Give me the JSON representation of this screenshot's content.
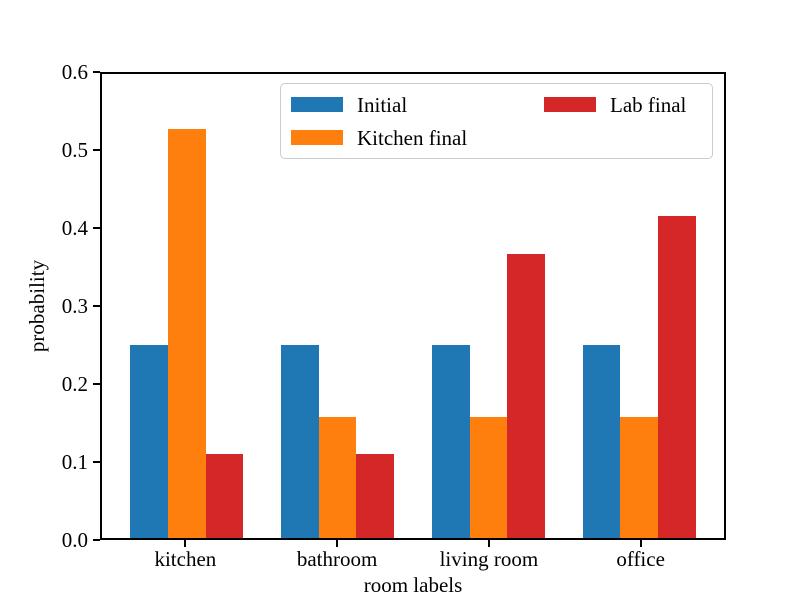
{
  "figure": {
    "background": "#ffffff",
    "spine_color": "#000000",
    "legend_border_color": "#cccccc"
  },
  "chart_data": {
    "type": "bar",
    "title": "",
    "xlabel": "room labels",
    "ylabel": "probability",
    "categories": [
      "kitchen",
      "bathroom",
      "living room",
      "office"
    ],
    "series": [
      {
        "name": "Initial",
        "color": "#1f77b4",
        "values": [
          0.25,
          0.25,
          0.25,
          0.25
        ]
      },
      {
        "name": "Kitchen final",
        "color": "#ff7f0e",
        "values": [
          0.529,
          0.157,
          0.157,
          0.157
        ]
      },
      {
        "name": "Lab final",
        "color": "#d62728",
        "values": [
          0.108,
          0.108,
          0.367,
          0.416
        ]
      }
    ],
    "ylim": [
      0,
      0.6
    ],
    "yticks": [
      "0.0",
      "0.1",
      "0.2",
      "0.3",
      "0.4",
      "0.5",
      "0.6"
    ],
    "grid": false,
    "legend_position": "upper center",
    "legend_columns": 2
  }
}
